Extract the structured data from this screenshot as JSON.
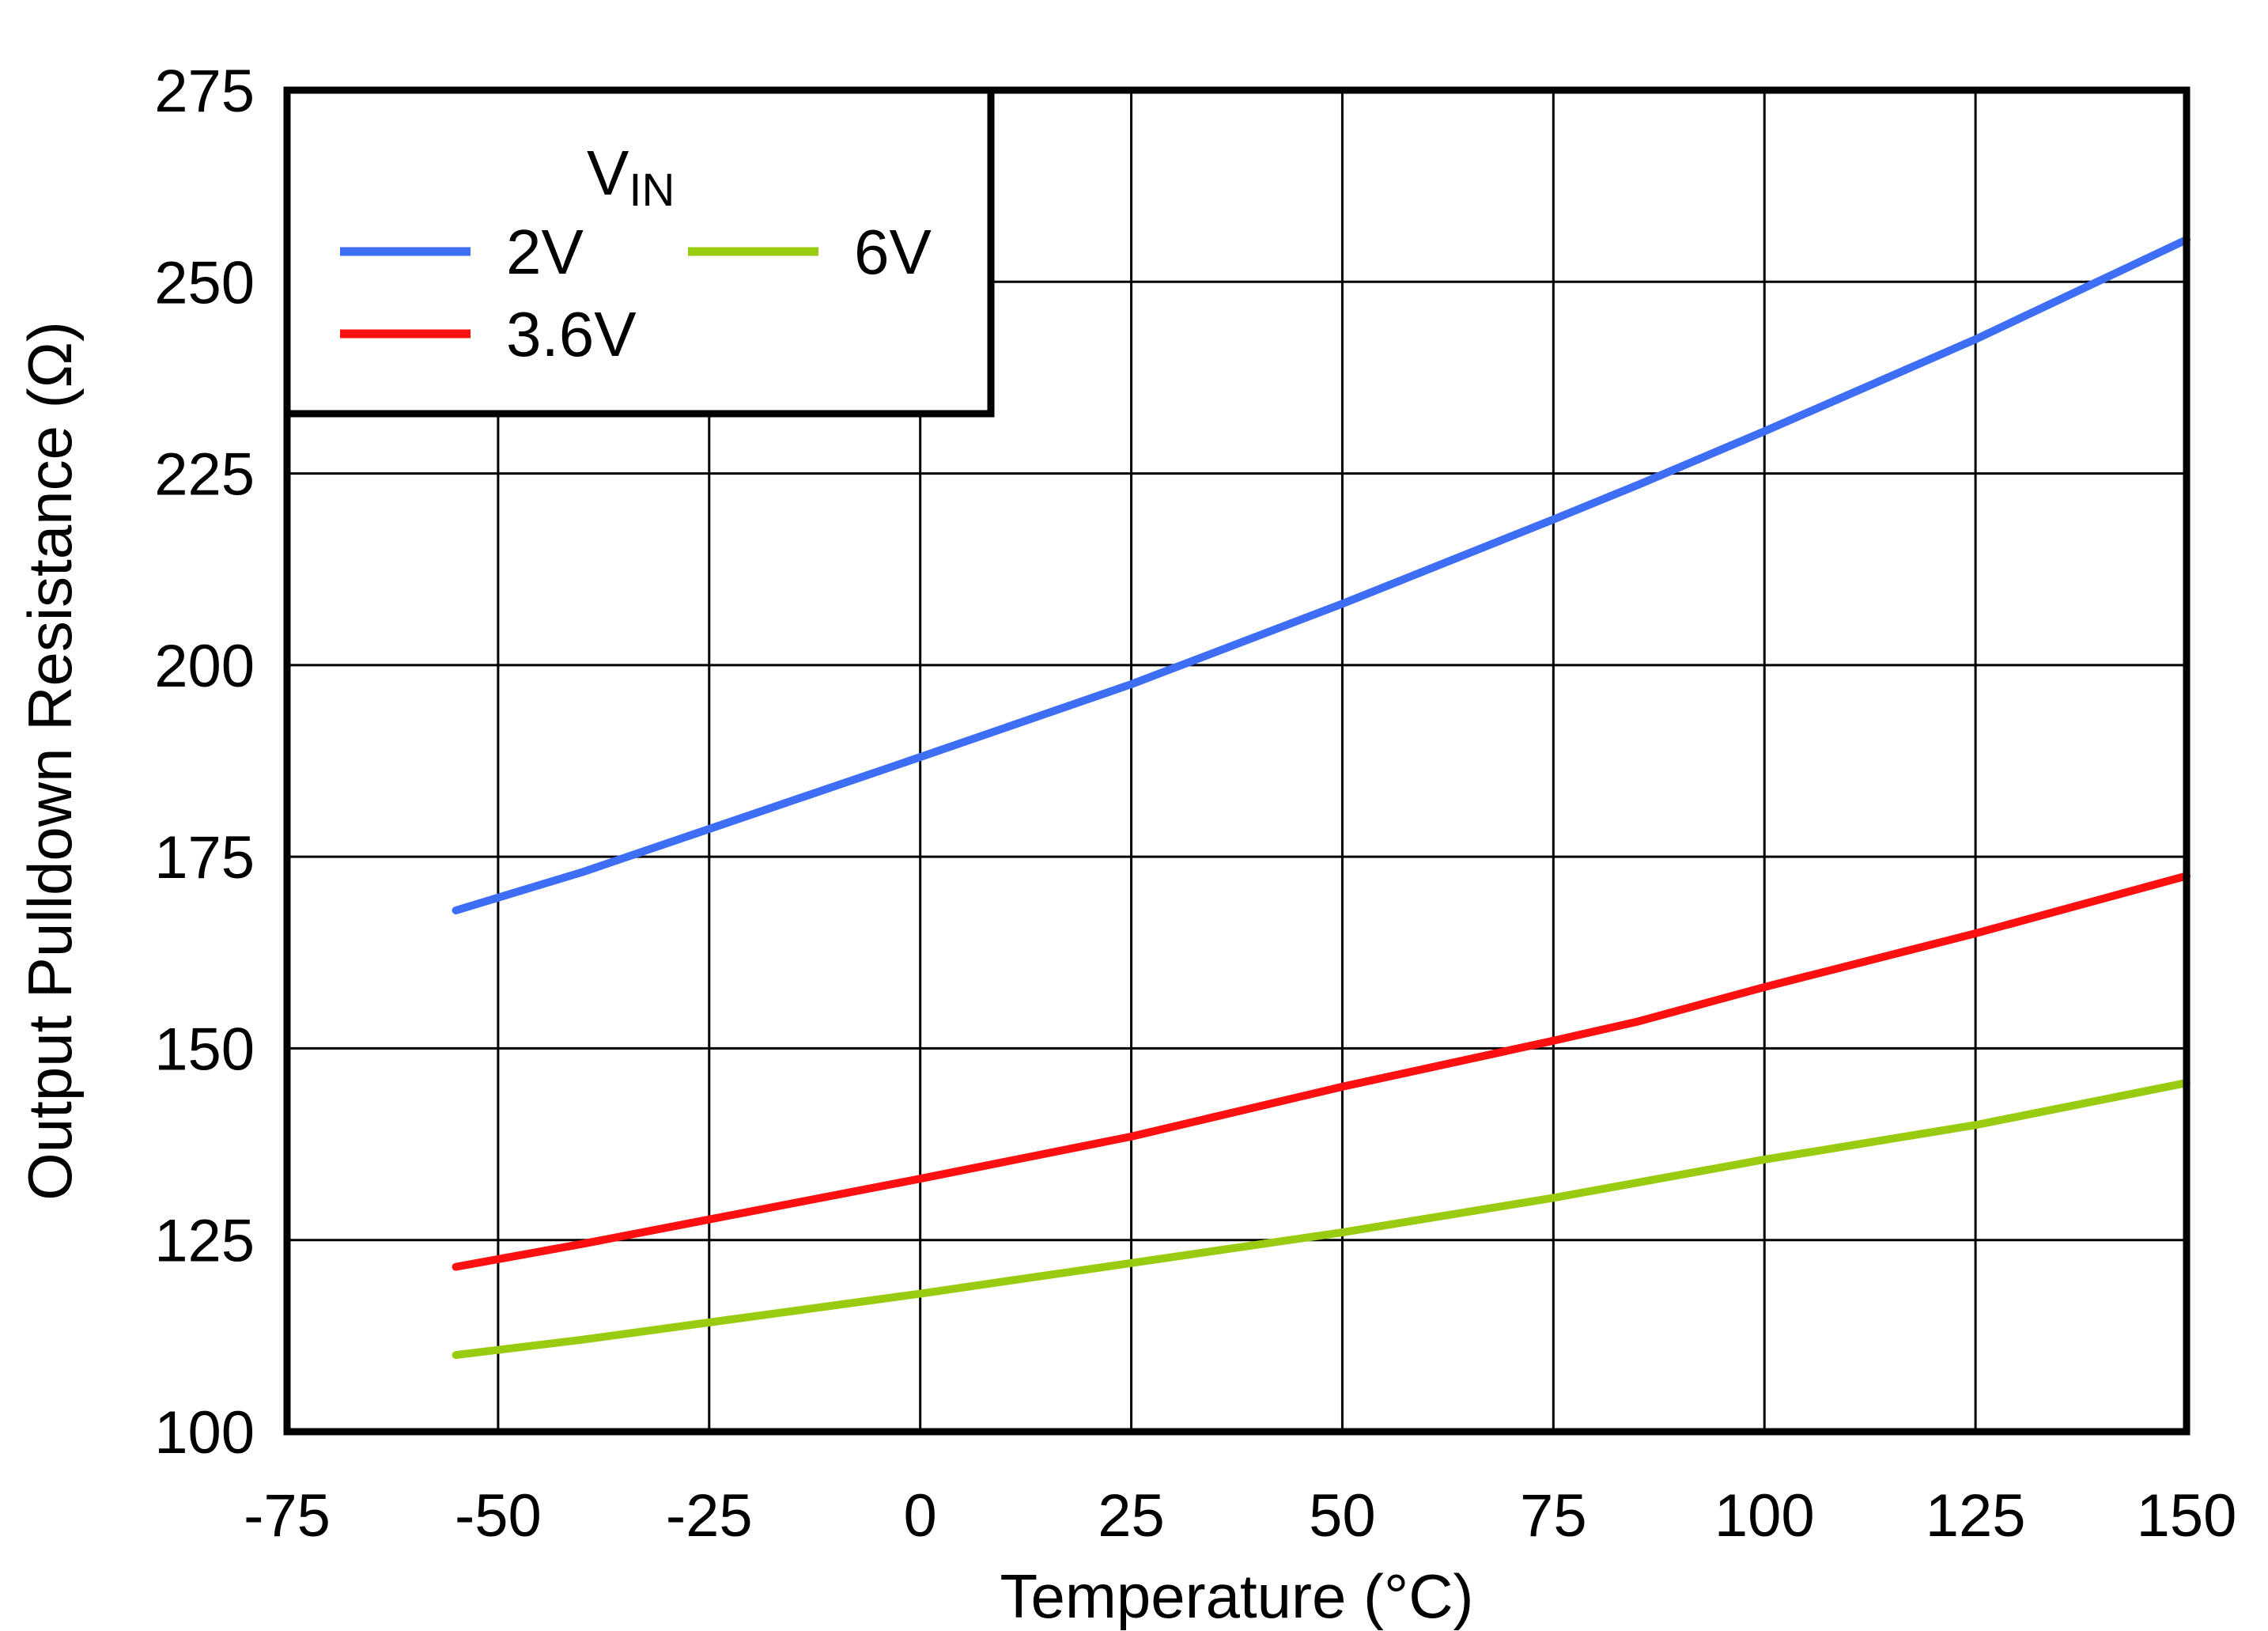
{
  "chart_data": {
    "type": "line",
    "xlabel": "Temperature (°C)",
    "ylabel": "Output Pulldown Resistance (Ω)",
    "xlim": [
      -75,
      150
    ],
    "ylim": [
      100,
      275
    ],
    "xticks": [
      -75,
      -50,
      -25,
      0,
      25,
      50,
      75,
      100,
      125,
      150
    ],
    "yticks": [
      100,
      125,
      150,
      175,
      200,
      225,
      250,
      275
    ],
    "grid": true,
    "legend": {
      "title_main": "V",
      "title_sub": "IN",
      "placement": "top-left"
    },
    "x": [
      -55,
      -40,
      0,
      25,
      50,
      75,
      85,
      100,
      125,
      150
    ],
    "series": [
      {
        "name": "2V",
        "color": "#3d6ef5",
        "values": [
          168,
          173,
          188,
          197.5,
          208,
          219,
          223.5,
          230.5,
          242.5,
          255.5
        ]
      },
      {
        "name": "3.6V",
        "color": "#ff1010",
        "values": [
          121.5,
          124.5,
          133,
          138.5,
          145,
          151,
          153.5,
          158,
          165,
          172.5
        ]
      },
      {
        "name": "6V",
        "color": "#99cc11",
        "values": [
          110,
          112,
          118,
          122,
          126,
          130.5,
          132.5,
          135.5,
          140,
          145.5
        ]
      }
    ]
  }
}
